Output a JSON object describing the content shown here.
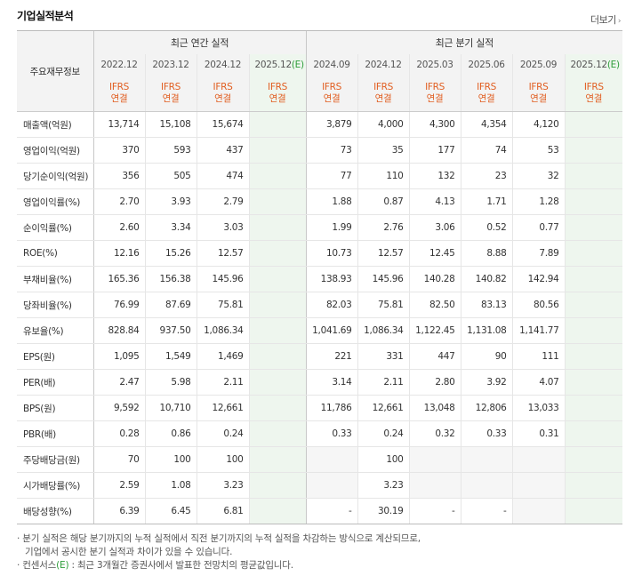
{
  "title": "기업실적분석",
  "more_label": "더보기",
  "header": {
    "row_label": "주요재무정보",
    "annual_group": "최근 연간 실적",
    "quarter_group": "최근 분기 실적",
    "annual_years": [
      "2022.12",
      "2023.12",
      "2024.12"
    ],
    "annual_est": "2025.12",
    "quarter_periods": [
      "2024.09",
      "2024.12",
      "2025.03",
      "2025.06",
      "2025.09"
    ],
    "quarter_est": "2025.12",
    "est_mark": "(E)",
    "ifrs1": "IFRS",
    "ifrs2": "연결"
  },
  "rows": [
    {
      "label": "매출액(억원)",
      "a": [
        "13,714",
        "15,108",
        "15,674",
        ""
      ],
      "q": [
        "3,879",
        "4,000",
        "4,300",
        "4,354",
        "4,120",
        ""
      ]
    },
    {
      "label": "영업이익(억원)",
      "a": [
        "370",
        "593",
        "437",
        ""
      ],
      "q": [
        "73",
        "35",
        "177",
        "74",
        "53",
        ""
      ]
    },
    {
      "label": "당기순이익(억원)",
      "a": [
        "356",
        "505",
        "474",
        ""
      ],
      "q": [
        "77",
        "110",
        "132",
        "23",
        "32",
        ""
      ]
    },
    {
      "label": "영업이익률(%)",
      "a": [
        "2.70",
        "3.93",
        "2.79",
        ""
      ],
      "q": [
        "1.88",
        "0.87",
        "4.13",
        "1.71",
        "1.28",
        ""
      ]
    },
    {
      "label": "순이익률(%)",
      "a": [
        "2.60",
        "3.34",
        "3.03",
        ""
      ],
      "q": [
        "1.99",
        "2.76",
        "3.06",
        "0.52",
        "0.77",
        ""
      ]
    },
    {
      "label": "ROE(%)",
      "a": [
        "12.16",
        "15.26",
        "12.57",
        ""
      ],
      "q": [
        "10.73",
        "12.57",
        "12.45",
        "8.88",
        "7.89",
        ""
      ]
    },
    {
      "label": "부채비율(%)",
      "a": [
        "165.36",
        "156.38",
        "145.96",
        ""
      ],
      "q": [
        "138.93",
        "145.96",
        "140.28",
        "140.82",
        "142.94",
        ""
      ]
    },
    {
      "label": "당좌비율(%)",
      "a": [
        "76.99",
        "87.69",
        "75.81",
        ""
      ],
      "q": [
        "82.03",
        "75.81",
        "82.50",
        "83.13",
        "80.56",
        ""
      ]
    },
    {
      "label": "유보율(%)",
      "a": [
        "828.84",
        "937.50",
        "1,086.34",
        ""
      ],
      "q": [
        "1,041.69",
        "1,086.34",
        "1,122.45",
        "1,131.08",
        "1,141.77",
        ""
      ]
    },
    {
      "label": "EPS(원)",
      "a": [
        "1,095",
        "1,549",
        "1,469",
        ""
      ],
      "q": [
        "221",
        "331",
        "447",
        "90",
        "111",
        ""
      ]
    },
    {
      "label": "PER(배)",
      "a": [
        "2.47",
        "5.98",
        "2.11",
        ""
      ],
      "q": [
        "3.14",
        "2.11",
        "2.80",
        "3.92",
        "4.07",
        ""
      ]
    },
    {
      "label": "BPS(원)",
      "a": [
        "9,592",
        "10,710",
        "12,661",
        ""
      ],
      "q": [
        "11,786",
        "12,661",
        "13,048",
        "12,806",
        "13,033",
        ""
      ]
    },
    {
      "label": "PBR(배)",
      "a": [
        "0.28",
        "0.86",
        "0.24",
        ""
      ],
      "q": [
        "0.33",
        "0.24",
        "0.32",
        "0.33",
        "0.31",
        ""
      ]
    },
    {
      "label": "주당배당금(원)",
      "a": [
        "70",
        "100",
        "100",
        ""
      ],
      "q": [
        "",
        "100",
        "",
        "",
        "",
        ""
      ]
    },
    {
      "label": "시가배당률(%)",
      "a": [
        "2.59",
        "1.08",
        "3.23",
        ""
      ],
      "q": [
        "",
        "3.23",
        "",
        "",
        "",
        ""
      ]
    },
    {
      "label": "배당성향(%)",
      "a": [
        "6.39",
        "6.45",
        "6.81",
        ""
      ],
      "q": [
        "-",
        "30.19",
        "-",
        "-",
        "",
        ""
      ]
    }
  ],
  "notes": {
    "line1": "· 분기 실적은 해당 분기까지의 누적 실적에서 직전 분기까지의 누적 실적을 차감하는 방식으로 계산되므로,",
    "line2": "기업에서 공시한 분기 실적과 차이가 있을 수 있습니다.",
    "line3_a": "· 컨센서스",
    "line3_e": "(E)",
    "line3_b": ": 최근 3개월간 증권사에서 발표한 전망치의 평균값입니다."
  }
}
